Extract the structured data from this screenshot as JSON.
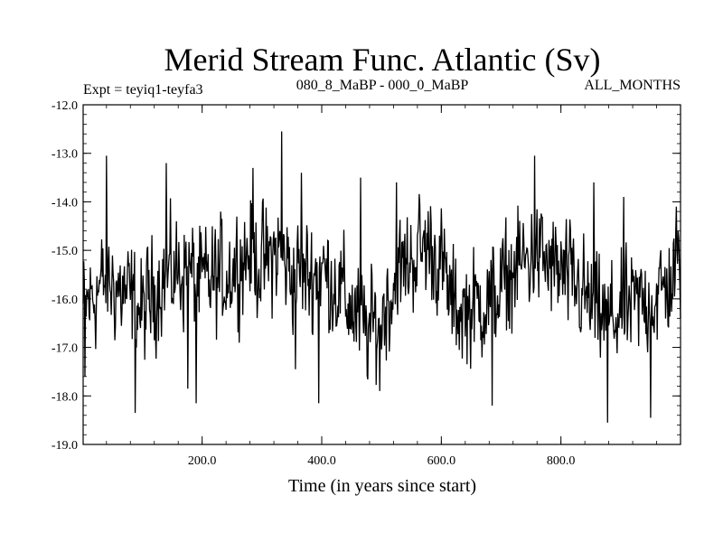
{
  "chart_data": {
    "type": "line",
    "title": "Merid Stream Func. Atlantic (Sv)",
    "subtitle_left": "Expt = teyiq1-teyfa3",
    "subtitle_center": "080_8_MaBP - 000_0_MaBP",
    "subtitle_right": "ALL_MONTHS",
    "xlabel": "Time (in years since start)",
    "ylabel": "",
    "xlim": [
      1,
      1000
    ],
    "ylim": [
      -19.0,
      -12.0
    ],
    "xticks": [
      200,
      400,
      600,
      800
    ],
    "xtick_labels": [
      "200.0",
      "400.0",
      "600.0",
      "800.0"
    ],
    "yticks": [
      -12,
      -13,
      -14,
      -15,
      -16,
      -17,
      -18,
      -19
    ],
    "ytick_labels": [
      "-12.0",
      "-13.0",
      "-14.0",
      "-15.0",
      "-16.0",
      "-17.0",
      "-18.0",
      "-19.0"
    ],
    "grid": false,
    "series": [
      {
        "name": "Merid Stream Func. Atlantic",
        "color": "#000000",
        "n_points": 1000,
        "baseline_anchors": [
          [
            1,
            -16.2
          ],
          [
            40,
            -15.6
          ],
          [
            80,
            -16.0
          ],
          [
            100,
            -16.3
          ],
          [
            130,
            -15.6
          ],
          [
            170,
            -15.4
          ],
          [
            200,
            -15.7
          ],
          [
            240,
            -15.5
          ],
          [
            280,
            -15.0
          ],
          [
            300,
            -15.3
          ],
          [
            330,
            -15.0
          ],
          [
            350,
            -15.5
          ],
          [
            380,
            -15.5
          ],
          [
            400,
            -15.4
          ],
          [
            430,
            -15.8
          ],
          [
            460,
            -16.4
          ],
          [
            480,
            -16.7
          ],
          [
            500,
            -16.3
          ],
          [
            530,
            -15.5
          ],
          [
            560,
            -15.0
          ],
          [
            580,
            -14.9
          ],
          [
            600,
            -15.3
          ],
          [
            620,
            -16.2
          ],
          [
            650,
            -16.2
          ],
          [
            680,
            -16.0
          ],
          [
            700,
            -15.8
          ],
          [
            730,
            -15.3
          ],
          [
            760,
            -15.1
          ],
          [
            790,
            -15.4
          ],
          [
            830,
            -15.8
          ],
          [
            860,
            -16.3
          ],
          [
            880,
            -16.4
          ],
          [
            900,
            -16.3
          ],
          [
            930,
            -16.1
          ],
          [
            960,
            -16.0
          ],
          [
            980,
            -15.7
          ],
          [
            1000,
            -15.3
          ]
        ],
        "noise_amplitude": 0.55,
        "spikes": [
          [
            4,
            -17.6
          ],
          [
            40,
            -13.05
          ],
          [
            88,
            -18.35
          ],
          [
            140,
            -13.2
          ],
          [
            176,
            -17.85
          ],
          [
            190,
            -18.15
          ],
          [
            285,
            -13.3
          ],
          [
            333,
            -12.55
          ],
          [
            356,
            -17.45
          ],
          [
            366,
            -13.4
          ],
          [
            395,
            -18.15
          ],
          [
            465,
            -13.5
          ],
          [
            497,
            -17.9
          ],
          [
            525,
            -13.6
          ],
          [
            685,
            -18.2
          ],
          [
            756,
            -13.05
          ],
          [
            855,
            -13.6
          ],
          [
            878,
            -18.55
          ],
          [
            905,
            -13.9
          ],
          [
            950,
            -18.45
          ],
          [
            993,
            -14.1
          ]
        ]
      }
    ]
  }
}
